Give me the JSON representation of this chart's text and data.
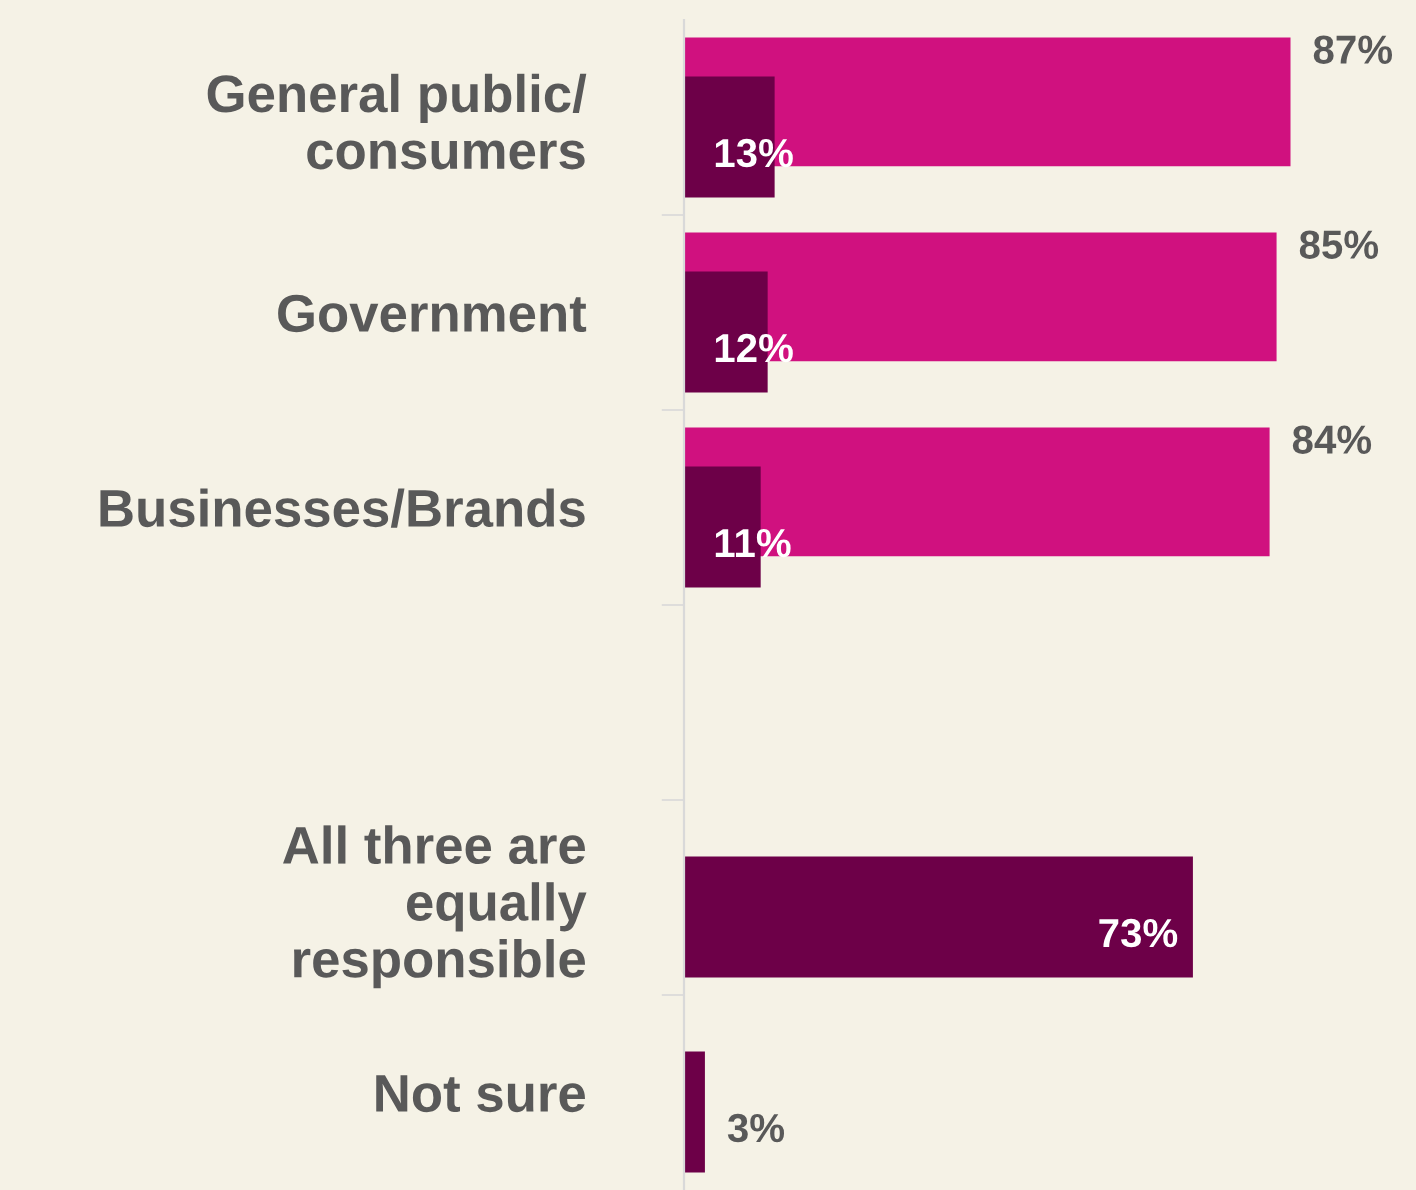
{
  "chart_data": {
    "type": "bar",
    "orientation": "horizontal",
    "categories": [
      "General public/\nconsumers",
      "Government",
      "Businesses/Brands",
      null,
      "All three are\nequally\nresponsible",
      "Not sure"
    ],
    "series": [
      {
        "color": "#d0117f",
        "values": [
          87,
          85,
          84,
          null,
          null,
          null
        ],
        "value_labels": [
          "87%",
          "85%",
          "84%",
          null,
          null,
          null
        ]
      },
      {
        "color": "#6d0048",
        "values": [
          13,
          12,
          11,
          null,
          73,
          3
        ],
        "value_labels": [
          "13%",
          "12%",
          "11%",
          null,
          "73%",
          "3%"
        ]
      }
    ],
    "xlim": [
      0,
      105
    ],
    "tick_labels": "y",
    "grid": false,
    "legend": false
  }
}
